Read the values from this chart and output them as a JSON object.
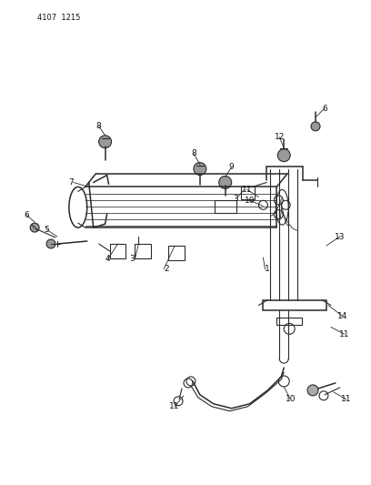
{
  "title": "4107  1215",
  "bg_color": "#ffffff",
  "line_color": "#2a2a2a",
  "label_color": "#111111",
  "fig_width": 4.08,
  "fig_height": 5.33,
  "dpi": 100
}
